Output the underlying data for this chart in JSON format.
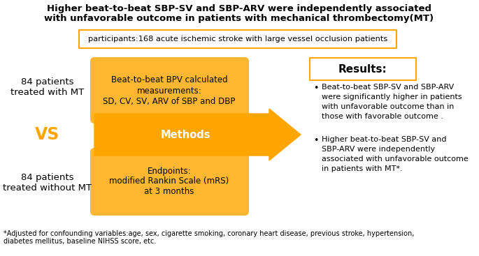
{
  "title_line1": "Higher beat-to-beat SBP-SV and SBP-ARV were independently associated",
  "title_line2": "with unfavorable outcome in patients with mechanical thrombectomy(MT)",
  "participants_text": "participants:168 acute ischemic stroke with large vessel occlusion patients",
  "left_top_text": "84 patients\ntreated with MT",
  "left_bottom_text": "84 patients\ntreated without MT",
  "vs_text": "VS",
  "box_top_text": "Beat-to-beat BPV calculated\nmeasurements:\nSD, CV, SV, ARV of SBP and DBP",
  "arrow_text": "Methods",
  "box_bottom_text": "Endpoints:\nmodified Rankin Scale (mRS)\nat 3 months",
  "results_title": "Results:",
  "bullet1_line1": "Beat-to-beat SBP-SV and SBP-ARV",
  "bullet1_line2": "were significantly higher in patients",
  "bullet1_line3": "with unfavorable outcome than in",
  "bullet1_line4": "those with favorable outcome .",
  "bullet2_line1": "Higher beat-to-beat SBP-SV and",
  "bullet2_line2": "SBP-ARV were independently",
  "bullet2_line3": "associated with unfavorable outcome",
  "bullet2_line4": "in patients with MT*.",
  "footnote_line1": "*Adjusted for confounding variables:age, sex, cigarette smoking, coronary heart disease, previous stroke, hypertension,",
  "footnote_line2": "diabetes mellitus, baseline NIHSS score, etc.",
  "orange": "#FFA500",
  "orange_box": "#FFB732",
  "white": "#FFFFFF",
  "black": "#000000"
}
